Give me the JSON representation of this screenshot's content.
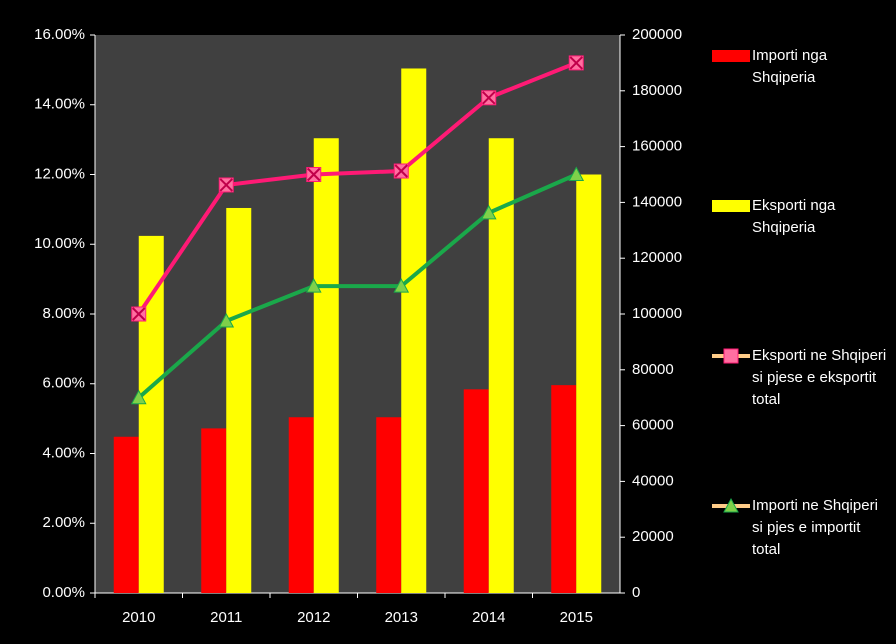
{
  "chart_data": {
    "type": "bar-line",
    "categories": [
      "2010",
      "2011",
      "2012",
      "2013",
      "2014",
      "2015"
    ],
    "series": [
      {
        "name": "Importi nga Shqiperia",
        "type": "bar",
        "axis": "y2",
        "color": "#ff0000",
        "values": [
          56000,
          59000,
          63000,
          63000,
          73000,
          74500
        ]
      },
      {
        "name": "Eksporti nga Shqiperia",
        "type": "bar",
        "axis": "y2",
        "color": "#ffff00",
        "values": [
          128000,
          138000,
          163000,
          188000,
          163000,
          150000
        ]
      },
      {
        "name": "Eksporti ne Shqiperi si pjese e eksportit total",
        "type": "line",
        "axis": "y",
        "color": "#ff1a75",
        "values": [
          8.0,
          11.7,
          12.0,
          12.1,
          14.2,
          15.2
        ]
      },
      {
        "name": "Importi ne Shqiperi si pjes e importit total",
        "type": "line",
        "axis": "y",
        "color": "#1aa84a",
        "values": [
          5.6,
          7.8,
          8.8,
          8.8,
          10.9,
          12.0
        ]
      }
    ],
    "ylim": [
      0,
      16
    ],
    "yticks": [
      {
        "value": 0,
        "label": "0.00%"
      },
      {
        "value": 2,
        "label": "2.00%"
      },
      {
        "value": 4,
        "label": "4.00%"
      },
      {
        "value": 6,
        "label": "6.00%"
      },
      {
        "value": 8,
        "label": "8.00%"
      },
      {
        "value": 10,
        "label": "10.00%"
      },
      {
        "value": 12,
        "label": "12.00%"
      },
      {
        "value": 14,
        "label": "14.00%"
      },
      {
        "value": 16,
        "label": "16.00%"
      }
    ],
    "y2lim": [
      0,
      200000
    ],
    "y2ticks": [
      0,
      20000,
      40000,
      60000,
      80000,
      100000,
      120000,
      140000,
      160000,
      180000,
      200000
    ],
    "grid": false
  }
}
